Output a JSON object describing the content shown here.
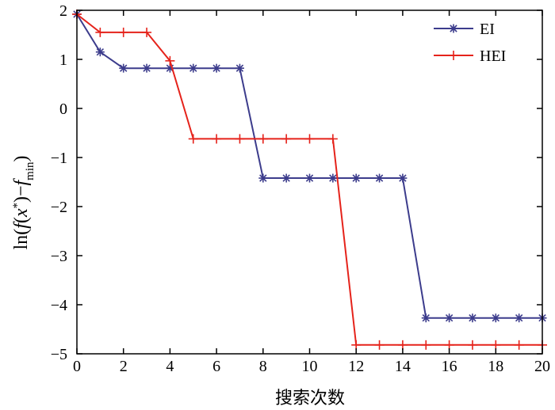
{
  "chart_data": {
    "type": "line",
    "title": "",
    "xlabel": "搜索次数",
    "ylabel": {
      "prefix": "ln(",
      "f": "f",
      "open": "(",
      "x": "x",
      "sup": "*",
      "close": ")−",
      "f2": "f",
      "sub": "min",
      "end": ")"
    },
    "xlim": [
      0,
      20
    ],
    "ylim": [
      -5,
      2
    ],
    "xticks": [
      0,
      2,
      4,
      6,
      8,
      10,
      12,
      14,
      16,
      18,
      20
    ],
    "yticks": [
      2,
      1,
      0,
      -1,
      -2,
      -3,
      -4,
      -5
    ],
    "ytick_labels": [
      "2",
      "1",
      "0",
      "−1",
      "−2",
      "−3",
      "−4",
      "−5"
    ],
    "grid": false,
    "legend_position": "top-right",
    "x": [
      0,
      1,
      2,
      3,
      4,
      5,
      6,
      7,
      8,
      9,
      10,
      11,
      12,
      13,
      14,
      15,
      16,
      17,
      18,
      19,
      20
    ],
    "series": [
      {
        "name": "EI",
        "color": "#3c3c8c",
        "marker": "asterisk",
        "x": [
          0,
          1,
          2,
          3,
          4,
          5,
          6,
          7,
          8,
          9,
          10,
          11,
          12,
          13,
          14,
          15,
          16,
          17,
          18,
          19,
          20
        ],
        "values": [
          1.92,
          1.15,
          0.82,
          0.82,
          0.82,
          0.82,
          0.82,
          0.82,
          -1.42,
          -1.42,
          -1.42,
          -1.42,
          -1.42,
          -1.42,
          -1.42,
          -4.27,
          -4.27,
          -4.27,
          -4.27,
          -4.27,
          -4.27
        ]
      },
      {
        "name": "HEI",
        "color": "#e5231b",
        "marker": "plus",
        "x": [
          0,
          1,
          2,
          3,
          4,
          5,
          6,
          7,
          8,
          9,
          10,
          11,
          12,
          13,
          14,
          15,
          16,
          17,
          18,
          19,
          20
        ],
        "values": [
          1.92,
          1.55,
          1.55,
          1.55,
          0.97,
          -0.62,
          -0.62,
          -0.62,
          -0.62,
          -0.62,
          -0.62,
          -0.62,
          -4.82,
          -4.82,
          -4.82,
          -4.82,
          -4.82,
          -4.82,
          -4.82,
          -4.82,
          -4.82
        ]
      }
    ]
  }
}
